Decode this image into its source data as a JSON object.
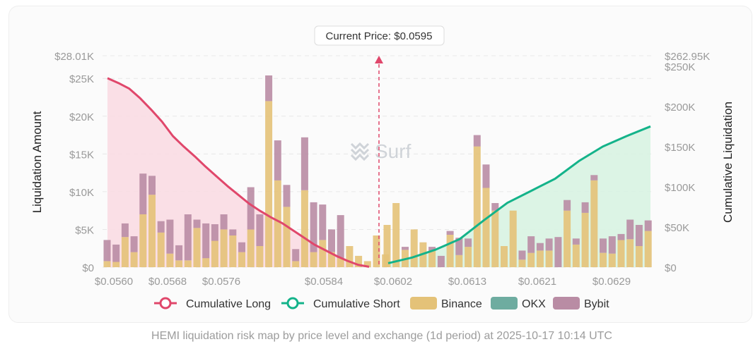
{
  "colors": {
    "long": "#e0476b",
    "short": "#14b38a",
    "long_fill": "#f9dbe3",
    "short_fill": "#d8f3e2",
    "binance": "#e4c278",
    "okx": "#6eaca0",
    "bybit": "#b98ca4",
    "grid": "#e8e8e8",
    "axis_text": "#9a9a9a",
    "watermark": "#cfd3d8"
  },
  "watermark": "Surf",
  "caption": "HEMI liquidation risk map by price level and exchange (1d period) at 2025-10-17 10:14 UTC",
  "chart_data": {
    "type": "bar",
    "title": "",
    "current_price_label": "Current Price: $0.0595",
    "current_price": 0.0595,
    "xlabel": "",
    "ylabel": "Liquidation Amount",
    "y2label": "Cumulative Liquidation",
    "x_ticks": [
      "$0.0560",
      "$0.0568",
      "$0.0576",
      "$0.0584",
      "$0.0602",
      "$0.0613",
      "$0.0621",
      "$0.0629"
    ],
    "ylim": [
      0,
      28010
    ],
    "y_ticks": [
      "$0",
      "$5K",
      "$10K",
      "$15K",
      "$20K",
      "$25K",
      "$28.01K"
    ],
    "y_tick_values": [
      0,
      5000,
      10000,
      15000,
      20000,
      25000,
      28010
    ],
    "y2lim": [
      0,
      262950
    ],
    "y2_ticks": [
      "$0",
      "$50K",
      "$100K",
      "$150K",
      "$200K",
      "$250K",
      "$262.95K"
    ],
    "y2_tick_values": [
      0,
      50000,
      100000,
      150000,
      200000,
      250000,
      262950
    ],
    "legend": [
      "Cumulative Long",
      "Cumulative Short",
      "Binance",
      "OKX",
      "Bybit"
    ],
    "legend_position": "bottom",
    "long_side": {
      "binance": [
        800,
        700,
        4000,
        2000,
        7000,
        9600,
        4600,
        1800,
        900,
        900,
        5200,
        1200,
        3500,
        5000,
        4200,
        2000,
        5000,
        2800,
        22000,
        11500,
        8000,
        800,
        10200,
        2000,
        3600,
        2000,
        1200,
        2800,
        1500,
        800,
        4200,
        1700
      ],
      "okx": [
        0,
        0,
        0,
        0,
        0,
        0,
        0,
        0,
        0,
        0,
        0,
        0,
        0,
        0,
        0,
        0,
        0,
        0,
        0,
        0,
        0,
        0,
        0,
        0,
        0,
        0,
        0,
        0,
        0,
        0,
        0,
        0
      ],
      "bybit": [
        2800,
        2300,
        1800,
        2100,
        5400,
        2500,
        1500,
        4500,
        2000,
        6100,
        1100,
        4600,
        2200,
        2000,
        800,
        1300,
        5600,
        4200,
        3400,
        5300,
        2900,
        1600,
        7000,
        6600,
        4700,
        3000,
        5700,
        0,
        0,
        0,
        0,
        0
      ]
    },
    "short_side": {
      "binance": [
        5600,
        8500,
        2300,
        5000,
        3300,
        2200,
        0,
        4300,
        1600,
        2700,
        16000,
        10500,
        7500,
        2800,
        7500,
        1000,
        1900,
        2200,
        2200,
        0,
        7500,
        3000,
        7200,
        11500,
        1900,
        1800,
        3600,
        3700,
        2800,
        4800
      ],
      "okx": [
        0,
        0,
        0,
        0,
        0,
        0,
        0,
        0,
        0,
        0,
        0,
        0,
        0,
        0,
        0,
        0,
        0,
        0,
        0,
        0,
        0,
        0,
        0,
        0,
        0,
        0,
        0,
        0,
        0,
        0
      ],
      "bybit": [
        0,
        0,
        400,
        0,
        0,
        500,
        1500,
        500,
        2300,
        1100,
        1500,
        3100,
        1000,
        0,
        0,
        1200,
        2200,
        1000,
        1600,
        4000,
        1400,
        800,
        1400,
        700,
        1900,
        2300,
        800,
        2600,
        2800,
        1400
      ]
    },
    "cumulative_long": [
      235000,
      229000,
      222000,
      210000,
      196000,
      181000,
      163000,
      150000,
      138000,
      125000,
      113000,
      101000,
      90000,
      79000,
      70000,
      62000,
      55000,
      46000,
      37000,
      28000,
      21000,
      14000,
      8000,
      3000,
      500
    ],
    "cumulative_short": [
      5000,
      12000,
      22000,
      35000,
      58000,
      80000,
      95000,
      110000,
      132000,
      150000,
      163000,
      175000
    ]
  }
}
